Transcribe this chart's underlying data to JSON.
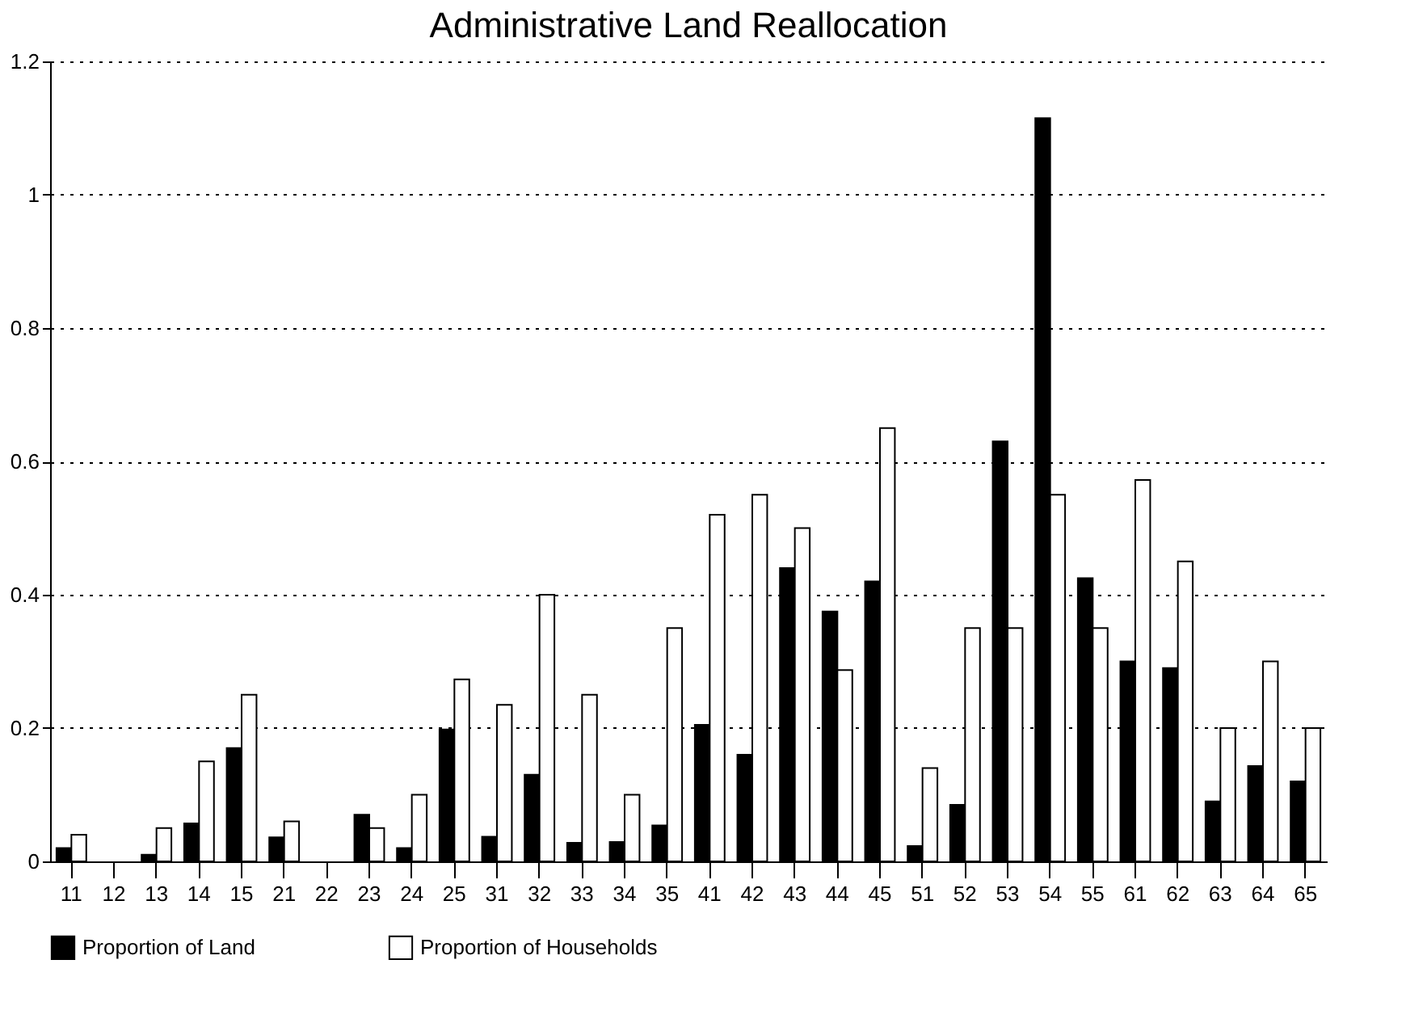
{
  "chart_data": {
    "type": "bar",
    "title": "Administrative Land Reallocation",
    "categories": [
      "11",
      "12",
      "13",
      "14",
      "15",
      "21",
      "22",
      "23",
      "24",
      "25",
      "31",
      "32",
      "33",
      "34",
      "35",
      "41",
      "42",
      "43",
      "44",
      "45",
      "51",
      "52",
      "53",
      "54",
      "55",
      "61",
      "62",
      "63",
      "64",
      "65"
    ],
    "series": [
      {
        "name": "Proportion of Land",
        "color": "#000000",
        "values": [
          0.02,
          0,
          0.01,
          0.057,
          0.17,
          0.036,
          0,
          0.07,
          0.02,
          0.198,
          0.037,
          0.13,
          0.028,
          0.029,
          0.054,
          0.205,
          0.16,
          0.44,
          0.375,
          0.42,
          0.023,
          0.085,
          0.63,
          1.115,
          0.425,
          0.3,
          0.29,
          0.09,
          0.143,
          0.12
        ]
      },
      {
        "name": "Proportion of Households",
        "color": "#ffffff",
        "values": [
          0.04,
          0,
          0.05,
          0.15,
          0.25,
          0.06,
          0,
          0.05,
          0.1,
          0.273,
          0.235,
          0.4,
          0.25,
          0.1,
          0.35,
          0.52,
          0.55,
          0.5,
          0.287,
          0.65,
          0.14,
          0.35,
          0.35,
          0.55,
          0.35,
          0.572,
          0.45,
          0.2,
          0.3,
          0.2
        ]
      }
    ],
    "ylim": [
      0,
      1.2
    ],
    "yticks": [
      0,
      0.2,
      0.4,
      0.6,
      0.8,
      1,
      1.2
    ],
    "grid": "y",
    "legend": "bottom"
  }
}
